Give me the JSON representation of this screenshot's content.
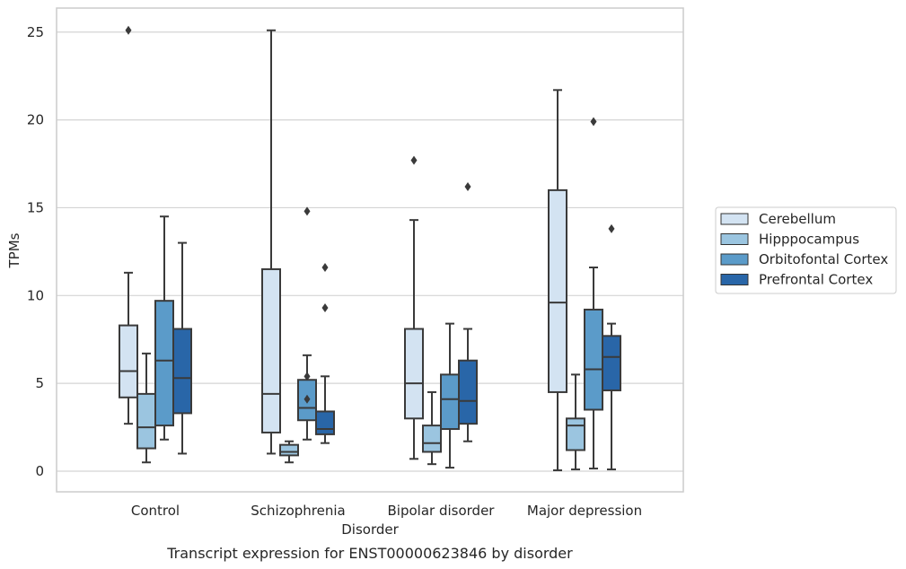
{
  "chart_data": {
    "type": "box",
    "title": "Transcript expression for ENST00000623846 by disorder",
    "xlabel": "Disorder",
    "ylabel": "TPMs",
    "ylim": [
      -1.15,
      26.3
    ],
    "yticks": [
      0,
      5,
      10,
      15,
      20,
      25
    ],
    "grid": "horizontal",
    "legend_position": "right",
    "categories": [
      "Control",
      "Schizophrenia",
      "Bipolar disorder",
      "Major depression"
    ],
    "series": [
      {
        "name": "Cerebellum",
        "color": "#d3e3f2",
        "boxes": [
          {
            "whisker_low": 2.7,
            "q1": 4.2,
            "median": 5.7,
            "q3": 8.3,
            "whisker_high": 11.3,
            "outliers": [
              25.1
            ]
          },
          {
            "whisker_low": 1.0,
            "q1": 2.2,
            "median": 4.4,
            "q3": 11.5,
            "whisker_high": 25.1,
            "outliers": []
          },
          {
            "whisker_low": 0.7,
            "q1": 3.0,
            "median": 5.0,
            "q3": 8.1,
            "whisker_high": 14.3,
            "outliers": [
              17.7
            ]
          },
          {
            "whisker_low": 0.05,
            "q1": 4.5,
            "median": 9.6,
            "q3": 16.0,
            "whisker_high": 21.7,
            "outliers": []
          }
        ]
      },
      {
        "name": "Hipppocampus",
        "color": "#9bc5e0",
        "boxes": [
          {
            "whisker_low": 0.5,
            "q1": 1.3,
            "median": 2.5,
            "q3": 4.4,
            "whisker_high": 6.7,
            "outliers": []
          },
          {
            "whisker_low": 0.5,
            "q1": 0.9,
            "median": 1.1,
            "q3": 1.5,
            "whisker_high": 1.7,
            "outliers": []
          },
          {
            "whisker_low": 0.4,
            "q1": 1.1,
            "median": 1.6,
            "q3": 2.6,
            "whisker_high": 4.5,
            "outliers": []
          },
          {
            "whisker_low": 0.1,
            "q1": 1.2,
            "median": 2.6,
            "q3": 3.0,
            "whisker_high": 5.5,
            "outliers": []
          }
        ]
      },
      {
        "name": "Orbitofontal Cortex",
        "color": "#5b9bc9",
        "boxes": [
          {
            "whisker_low": 1.8,
            "q1": 2.6,
            "median": 6.3,
            "q3": 9.7,
            "whisker_high": 14.5,
            "outliers": []
          },
          {
            "whisker_low": 1.8,
            "q1": 2.9,
            "median": 3.6,
            "q3": 5.2,
            "whisker_high": 6.6,
            "outliers": [
              5.4,
              4.1,
              14.8
            ]
          },
          {
            "whisker_low": 0.2,
            "q1": 2.4,
            "median": 4.1,
            "q3": 5.5,
            "whisker_high": 8.4,
            "outliers": []
          },
          {
            "whisker_low": 0.15,
            "q1": 3.5,
            "median": 5.8,
            "q3": 9.2,
            "whisker_high": 11.6,
            "outliers": [
              19.9
            ]
          }
        ]
      },
      {
        "name": "Prefrontal Cortex",
        "color": "#2966a8",
        "boxes": [
          {
            "whisker_low": 1.0,
            "q1": 3.3,
            "median": 5.3,
            "q3": 8.1,
            "whisker_high": 13.0,
            "outliers": []
          },
          {
            "whisker_low": 1.6,
            "q1": 2.1,
            "median": 2.4,
            "q3": 3.4,
            "whisker_high": 5.4,
            "outliers": [
              11.6,
              9.3
            ]
          },
          {
            "whisker_low": 1.7,
            "q1": 2.7,
            "median": 4.0,
            "q3": 6.3,
            "whisker_high": 8.1,
            "outliers": [
              16.2
            ]
          },
          {
            "whisker_low": 0.1,
            "q1": 4.6,
            "median": 6.5,
            "q3": 7.7,
            "whisker_high": 8.4,
            "outliers": [
              13.8
            ]
          }
        ]
      }
    ]
  }
}
